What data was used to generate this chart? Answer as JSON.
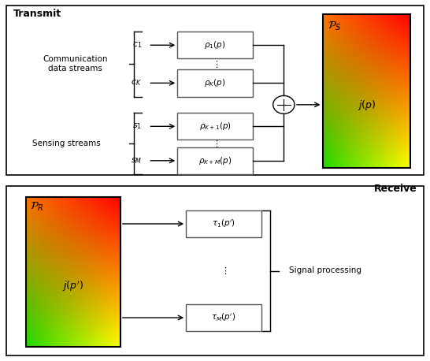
{
  "fig_width": 5.46,
  "fig_height": 4.58,
  "dpi": 100,
  "transmit_label": "Transmit",
  "receive_label": "Receive",
  "comm_label": "Communication\ndata streams",
  "sensing_label": "Sensing streams",
  "signal_proc_label": "Signal processing",
  "ps_label": "$\\mathcal{P}_S$",
  "pr_label": "$\\mathcal{P}_R$",
  "jp_label": "$j(p)$",
  "jpp_label": "$j(p')$",
  "comm_streams": [
    "$c_1$",
    "$c_K$"
  ],
  "sensing_streams": [
    "$s_1$",
    "$s_M$"
  ],
  "comm_boxes": [
    "$\\rho_1(p)$",
    "$\\rho_K(p)$"
  ],
  "sensing_boxes": [
    "$\\rho_{K+1}(p)$",
    "$\\rho_{K+M}(p)$"
  ],
  "tau_boxes": [
    "$\\tau_1(p')$",
    "$\\tau_M(p')$"
  ],
  "gradient_corners": {
    "BL": [
      0.13,
      0.85,
      0.0
    ],
    "BR": [
      1.0,
      1.0,
      0.0
    ],
    "TL": [
      1.0,
      0.45,
      0.0
    ],
    "TR": [
      1.0,
      0.0,
      0.0
    ]
  }
}
